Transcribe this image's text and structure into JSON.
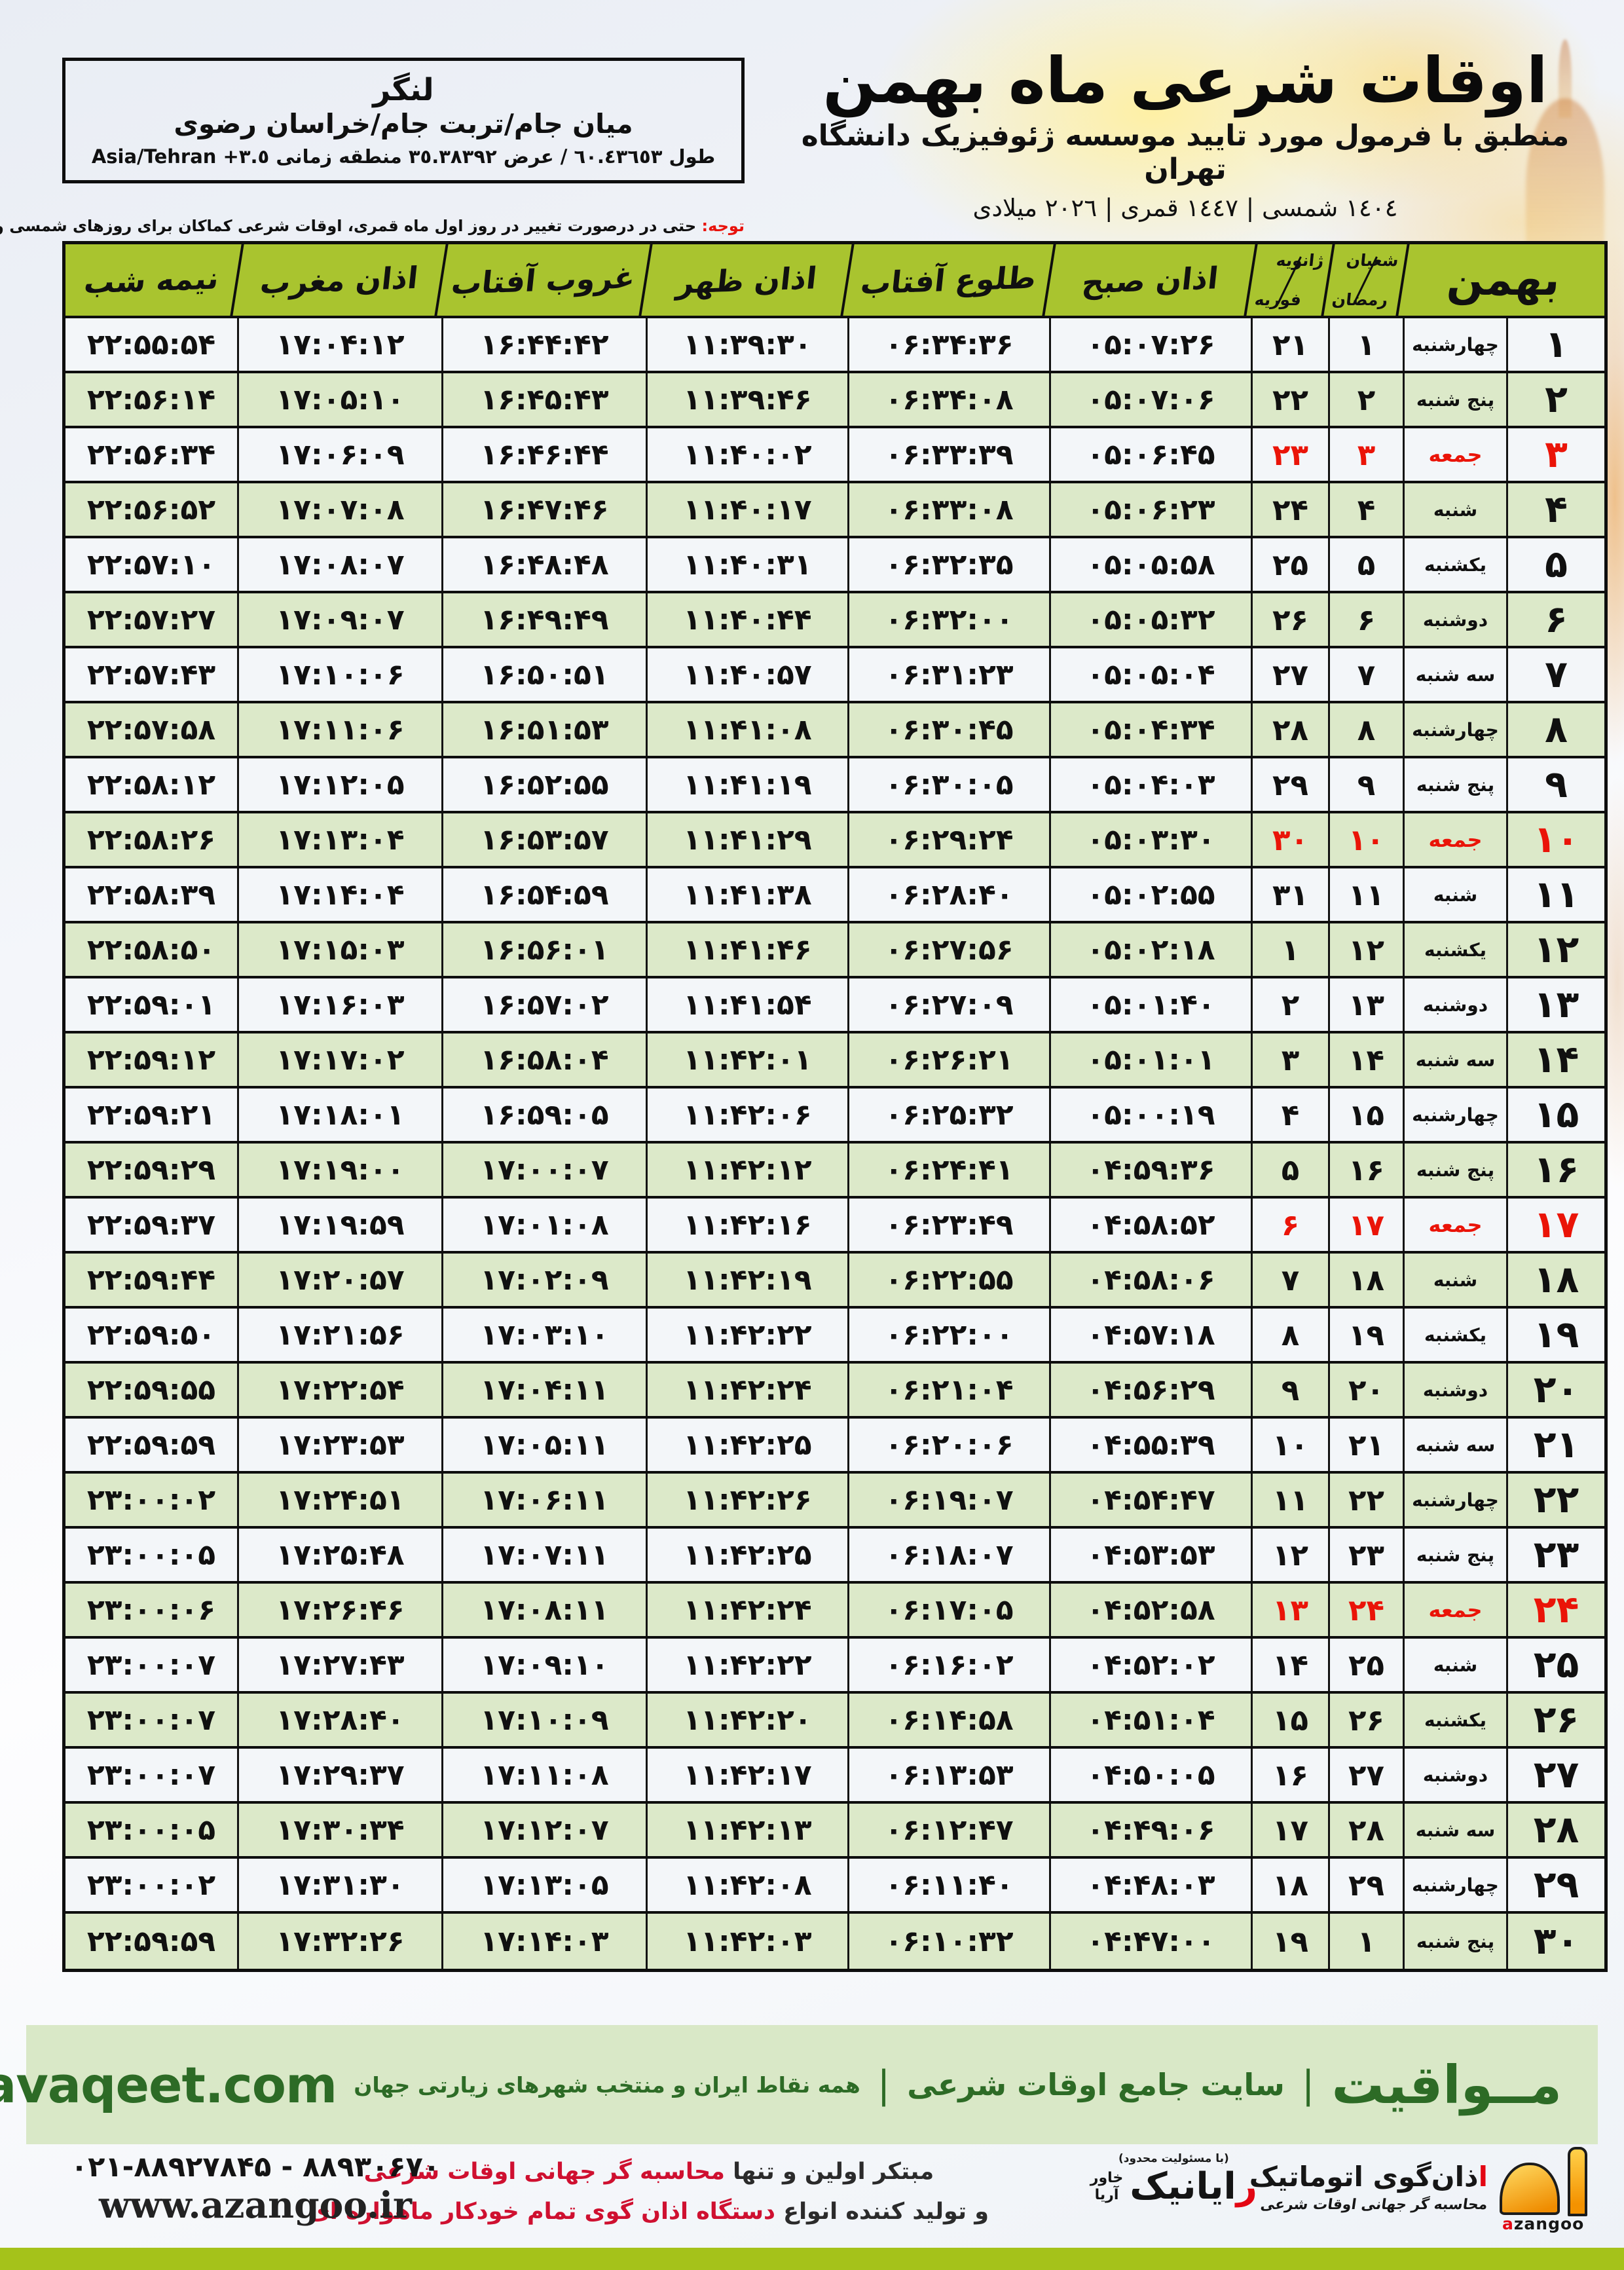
{
  "header": {
    "title": "اوقات شرعی ماه بهمن",
    "subtitle": "منطبق با فرمول مورد تایید موسسه ژئوفیزیک دانشگاه تهران",
    "date_line": "١٤٠٤ شمسی | ١٤٤٧ قمری | ٢٠٢٦ میلادی"
  },
  "location_box": {
    "city": "لنگر",
    "region": "میان جام/تربت جام/خراسان رضوی",
    "coords_fa": "طول ٦٠.٤٣٦٥٣ / عرض ٣٥.٣٨٣٩٢ منطقه زمانی",
    "coords_en": "Asia/Tehran +٣.٥"
  },
  "note": {
    "label": "توجه:",
    "text": "حتی در درصورت تغییر در روز اول ماه قمری، اوقات شرعی کماکان برای روزهای شمسی و میلادی معتبر است."
  },
  "table": {
    "month_label": "بهمن",
    "headers": {
      "hijri_top": "شعبان",
      "hijri_bottom": "رمضان",
      "greg_top": "ژانویه",
      "greg_bottom": "فوریه",
      "sobh": "اذان صبح",
      "tolu": "طلوع آفتاب",
      "zohr": "اذان ظهر",
      "ghorub": "غروب آفتاب",
      "maghreb": "اذان مغرب",
      "nime": "نیمه شب"
    },
    "rows": [
      {
        "day": "۱",
        "weekday": "چهارشنبه",
        "hijri": "۱",
        "greg": "۲۱",
        "sobh": "۰۵:۰۷:۲۶",
        "tolu": "۰۶:۳۴:۳۶",
        "zohr": "۱۱:۳۹:۳۰",
        "ghorub": "۱۶:۴۴:۴۲",
        "maghreb": "۱۷:۰۴:۱۲",
        "nime": "۲۲:۵۵:۵۴",
        "friday": false
      },
      {
        "day": "۲",
        "weekday": "پنج شنبه",
        "hijri": "۲",
        "greg": "۲۲",
        "sobh": "۰۵:۰۷:۰۶",
        "tolu": "۰۶:۳۴:۰۸",
        "zohr": "۱۱:۳۹:۴۶",
        "ghorub": "۱۶:۴۵:۴۳",
        "maghreb": "۱۷:۰۵:۱۰",
        "nime": "۲۲:۵۶:۱۴",
        "friday": false
      },
      {
        "day": "۳",
        "weekday": "جمعه",
        "hijri": "۳",
        "greg": "۲۳",
        "sobh": "۰۵:۰۶:۴۵",
        "tolu": "۰۶:۳۳:۳۹",
        "zohr": "۱۱:۴۰:۰۲",
        "ghorub": "۱۶:۴۶:۴۴",
        "maghreb": "۱۷:۰۶:۰۹",
        "nime": "۲۲:۵۶:۳۴",
        "friday": true
      },
      {
        "day": "۴",
        "weekday": "شنبه",
        "hijri": "۴",
        "greg": "۲۴",
        "sobh": "۰۵:۰۶:۲۳",
        "tolu": "۰۶:۳۳:۰۸",
        "zohr": "۱۱:۴۰:۱۷",
        "ghorub": "۱۶:۴۷:۴۶",
        "maghreb": "۱۷:۰۷:۰۸",
        "nime": "۲۲:۵۶:۵۲",
        "friday": false
      },
      {
        "day": "۵",
        "weekday": "یکشنبه",
        "hijri": "۵",
        "greg": "۲۵",
        "sobh": "۰۵:۰۵:۵۸",
        "tolu": "۰۶:۳۲:۳۵",
        "zohr": "۱۱:۴۰:۳۱",
        "ghorub": "۱۶:۴۸:۴۸",
        "maghreb": "۱۷:۰۸:۰۷",
        "nime": "۲۲:۵۷:۱۰",
        "friday": false
      },
      {
        "day": "۶",
        "weekday": "دوشنبه",
        "hijri": "۶",
        "greg": "۲۶",
        "sobh": "۰۵:۰۵:۳۲",
        "tolu": "۰۶:۳۲:۰۰",
        "zohr": "۱۱:۴۰:۴۴",
        "ghorub": "۱۶:۴۹:۴۹",
        "maghreb": "۱۷:۰۹:۰۷",
        "nime": "۲۲:۵۷:۲۷",
        "friday": false
      },
      {
        "day": "۷",
        "weekday": "سه شنبه",
        "hijri": "۷",
        "greg": "۲۷",
        "sobh": "۰۵:۰۵:۰۴",
        "tolu": "۰۶:۳۱:۲۳",
        "zohr": "۱۱:۴۰:۵۷",
        "ghorub": "۱۶:۵۰:۵۱",
        "maghreb": "۱۷:۱۰:۰۶",
        "nime": "۲۲:۵۷:۴۳",
        "friday": false
      },
      {
        "day": "۸",
        "weekday": "چهارشنبه",
        "hijri": "۸",
        "greg": "۲۸",
        "sobh": "۰۵:۰۴:۳۴",
        "tolu": "۰۶:۳۰:۴۵",
        "zohr": "۱۱:۴۱:۰۸",
        "ghorub": "۱۶:۵۱:۵۳",
        "maghreb": "۱۷:۱۱:۰۶",
        "nime": "۲۲:۵۷:۵۸",
        "friday": false
      },
      {
        "day": "۹",
        "weekday": "پنج شنبه",
        "hijri": "۹",
        "greg": "۲۹",
        "sobh": "۰۵:۰۴:۰۳",
        "tolu": "۰۶:۳۰:۰۵",
        "zohr": "۱۱:۴۱:۱۹",
        "ghorub": "۱۶:۵۲:۵۵",
        "maghreb": "۱۷:۱۲:۰۵",
        "nime": "۲۲:۵۸:۱۲",
        "friday": false
      },
      {
        "day": "۱۰",
        "weekday": "جمعه",
        "hijri": "۱۰",
        "greg": "۳۰",
        "sobh": "۰۵:۰۳:۳۰",
        "tolu": "۰۶:۲۹:۲۴",
        "zohr": "۱۱:۴۱:۲۹",
        "ghorub": "۱۶:۵۳:۵۷",
        "maghreb": "۱۷:۱۳:۰۴",
        "nime": "۲۲:۵۸:۲۶",
        "friday": true
      },
      {
        "day": "۱۱",
        "weekday": "شنبه",
        "hijri": "۱۱",
        "greg": "۳۱",
        "sobh": "۰۵:۰۲:۵۵",
        "tolu": "۰۶:۲۸:۴۰",
        "zohr": "۱۱:۴۱:۳۸",
        "ghorub": "۱۶:۵۴:۵۹",
        "maghreb": "۱۷:۱۴:۰۴",
        "nime": "۲۲:۵۸:۳۹",
        "friday": false
      },
      {
        "day": "۱۲",
        "weekday": "یکشنبه",
        "hijri": "۱۲",
        "greg": "۱",
        "sobh": "۰۵:۰۲:۱۸",
        "tolu": "۰۶:۲۷:۵۶",
        "zohr": "۱۱:۴۱:۴۶",
        "ghorub": "۱۶:۵۶:۰۱",
        "maghreb": "۱۷:۱۵:۰۳",
        "nime": "۲۲:۵۸:۵۰",
        "friday": false
      },
      {
        "day": "۱۳",
        "weekday": "دوشنبه",
        "hijri": "۱۳",
        "greg": "۲",
        "sobh": "۰۵:۰۱:۴۰",
        "tolu": "۰۶:۲۷:۰۹",
        "zohr": "۱۱:۴۱:۵۴",
        "ghorub": "۱۶:۵۷:۰۲",
        "maghreb": "۱۷:۱۶:۰۳",
        "nime": "۲۲:۵۹:۰۱",
        "friday": false
      },
      {
        "day": "۱۴",
        "weekday": "سه شنبه",
        "hijri": "۱۴",
        "greg": "۳",
        "sobh": "۰۵:۰۱:۰۱",
        "tolu": "۰۶:۲۶:۲۱",
        "zohr": "۱۱:۴۲:۰۱",
        "ghorub": "۱۶:۵۸:۰۴",
        "maghreb": "۱۷:۱۷:۰۲",
        "nime": "۲۲:۵۹:۱۲",
        "friday": false
      },
      {
        "day": "۱۵",
        "weekday": "چهارشنبه",
        "hijri": "۱۵",
        "greg": "۴",
        "sobh": "۰۵:۰۰:۱۹",
        "tolu": "۰۶:۲۵:۳۲",
        "zohr": "۱۱:۴۲:۰۶",
        "ghorub": "۱۶:۵۹:۰۵",
        "maghreb": "۱۷:۱۸:۰۱",
        "nime": "۲۲:۵۹:۲۱",
        "friday": false
      },
      {
        "day": "۱۶",
        "weekday": "پنج شنبه",
        "hijri": "۱۶",
        "greg": "۵",
        "sobh": "۰۴:۵۹:۳۶",
        "tolu": "۰۶:۲۴:۴۱",
        "zohr": "۱۱:۴۲:۱۲",
        "ghorub": "۱۷:۰۰:۰۷",
        "maghreb": "۱۷:۱۹:۰۰",
        "nime": "۲۲:۵۹:۲۹",
        "friday": false
      },
      {
        "day": "۱۷",
        "weekday": "جمعه",
        "hijri": "۱۷",
        "greg": "۶",
        "sobh": "۰۴:۵۸:۵۲",
        "tolu": "۰۶:۲۳:۴۹",
        "zohr": "۱۱:۴۲:۱۶",
        "ghorub": "۱۷:۰۱:۰۸",
        "maghreb": "۱۷:۱۹:۵۹",
        "nime": "۲۲:۵۹:۳۷",
        "friday": true
      },
      {
        "day": "۱۸",
        "weekday": "شنبه",
        "hijri": "۱۸",
        "greg": "۷",
        "sobh": "۰۴:۵۸:۰۶",
        "tolu": "۰۶:۲۲:۵۵",
        "zohr": "۱۱:۴۲:۱۹",
        "ghorub": "۱۷:۰۲:۰۹",
        "maghreb": "۱۷:۲۰:۵۷",
        "nime": "۲۲:۵۹:۴۴",
        "friday": false
      },
      {
        "day": "۱۹",
        "weekday": "یکشنبه",
        "hijri": "۱۹",
        "greg": "۸",
        "sobh": "۰۴:۵۷:۱۸",
        "tolu": "۰۶:۲۲:۰۰",
        "zohr": "۱۱:۴۲:۲۲",
        "ghorub": "۱۷:۰۳:۱۰",
        "maghreb": "۱۷:۲۱:۵۶",
        "nime": "۲۲:۵۹:۵۰",
        "friday": false
      },
      {
        "day": "۲۰",
        "weekday": "دوشنبه",
        "hijri": "۲۰",
        "greg": "۹",
        "sobh": "۰۴:۵۶:۲۹",
        "tolu": "۰۶:۲۱:۰۴",
        "zohr": "۱۱:۴۲:۲۴",
        "ghorub": "۱۷:۰۴:۱۱",
        "maghreb": "۱۷:۲۲:۵۴",
        "nime": "۲۲:۵۹:۵۵",
        "friday": false
      },
      {
        "day": "۲۱",
        "weekday": "سه شنبه",
        "hijri": "۲۱",
        "greg": "۱۰",
        "sobh": "۰۴:۵۵:۳۹",
        "tolu": "۰۶:۲۰:۰۶",
        "zohr": "۱۱:۴۲:۲۵",
        "ghorub": "۱۷:۰۵:۱۱",
        "maghreb": "۱۷:۲۳:۵۳",
        "nime": "۲۲:۵۹:۵۹",
        "friday": false
      },
      {
        "day": "۲۲",
        "weekday": "چهارشنبه",
        "hijri": "۲۲",
        "greg": "۱۱",
        "sobh": "۰۴:۵۴:۴۷",
        "tolu": "۰۶:۱۹:۰۷",
        "zohr": "۱۱:۴۲:۲۶",
        "ghorub": "۱۷:۰۶:۱۱",
        "maghreb": "۱۷:۲۴:۵۱",
        "nime": "۲۳:۰۰:۰۲",
        "friday": false
      },
      {
        "day": "۲۳",
        "weekday": "پنج شنبه",
        "hijri": "۲۳",
        "greg": "۱۲",
        "sobh": "۰۴:۵۳:۵۳",
        "tolu": "۰۶:۱۸:۰۷",
        "zohr": "۱۱:۴۲:۲۵",
        "ghorub": "۱۷:۰۷:۱۱",
        "maghreb": "۱۷:۲۵:۴۸",
        "nime": "۲۳:۰۰:۰۵",
        "friday": false
      },
      {
        "day": "۲۴",
        "weekday": "جمعه",
        "hijri": "۲۴",
        "greg": "۱۳",
        "sobh": "۰۴:۵۲:۵۸",
        "tolu": "۰۶:۱۷:۰۵",
        "zohr": "۱۱:۴۲:۲۴",
        "ghorub": "۱۷:۰۸:۱۱",
        "maghreb": "۱۷:۲۶:۴۶",
        "nime": "۲۳:۰۰:۰۶",
        "friday": true
      },
      {
        "day": "۲۵",
        "weekday": "شنبه",
        "hijri": "۲۵",
        "greg": "۱۴",
        "sobh": "۰۴:۵۲:۰۲",
        "tolu": "۰۶:۱۶:۰۲",
        "zohr": "۱۱:۴۲:۲۲",
        "ghorub": "۱۷:۰۹:۱۰",
        "maghreb": "۱۷:۲۷:۴۳",
        "nime": "۲۳:۰۰:۰۷",
        "friday": false
      },
      {
        "day": "۲۶",
        "weekday": "یکشنبه",
        "hijri": "۲۶",
        "greg": "۱۵",
        "sobh": "۰۴:۵۱:۰۴",
        "tolu": "۰۶:۱۴:۵۸",
        "zohr": "۱۱:۴۲:۲۰",
        "ghorub": "۱۷:۱۰:۰۹",
        "maghreb": "۱۷:۲۸:۴۰",
        "nime": "۲۳:۰۰:۰۷",
        "friday": false
      },
      {
        "day": "۲۷",
        "weekday": "دوشنبه",
        "hijri": "۲۷",
        "greg": "۱۶",
        "sobh": "۰۴:۵۰:۰۵",
        "tolu": "۰۶:۱۳:۵۳",
        "zohr": "۱۱:۴۲:۱۷",
        "ghorub": "۱۷:۱۱:۰۸",
        "maghreb": "۱۷:۲۹:۳۷",
        "nime": "۲۳:۰۰:۰۷",
        "friday": false
      },
      {
        "day": "۲۸",
        "weekday": "سه شنبه",
        "hijri": "۲۸",
        "greg": "۱۷",
        "sobh": "۰۴:۴۹:۰۶",
        "tolu": "۰۶:۱۲:۴۷",
        "zohr": "۱۱:۴۲:۱۳",
        "ghorub": "۱۷:۱۲:۰۷",
        "maghreb": "۱۷:۳۰:۳۴",
        "nime": "۲۳:۰۰:۰۵",
        "friday": false
      },
      {
        "day": "۲۹",
        "weekday": "چهارشنبه",
        "hijri": "۲۹",
        "greg": "۱۸",
        "sobh": "۰۴:۴۸:۰۳",
        "tolu": "۰۶:۱۱:۴۰",
        "zohr": "۱۱:۴۲:۰۸",
        "ghorub": "۱۷:۱۳:۰۵",
        "maghreb": "۱۷:۳۱:۳۰",
        "nime": "۲۳:۰۰:۰۲",
        "friday": false
      },
      {
        "day": "۳۰",
        "weekday": "پنج شنبه",
        "hijri": "۱",
        "greg": "۱۹",
        "sobh": "۰۴:۴۷:۰۰",
        "tolu": "۰۶:۱۰:۳۲",
        "zohr": "۱۱:۴۲:۰۳",
        "ghorub": "۱۷:۱۴:۰۳",
        "maghreb": "۱۷:۳۲:۲۶",
        "nime": "۲۲:۵۹:۵۹",
        "friday": false
      }
    ]
  },
  "mavaqeet": {
    "brand": "مــواقیت",
    "sep": "|",
    "tagline1": "سایت جامع اوقات شرعی",
    "tagline2": "همه نقاط ایران و منتخب شهرهای زیارتی جهان",
    "url": "mavaqeet.com"
  },
  "footer": {
    "azangoo_title": "اذان‌گوی اتوماتیک",
    "azangoo_sub": "محاسبه گر جهانی اوقات شرعی",
    "azangoo_en_red": "a",
    "azangoo_en_black": "zangoo",
    "rayanik_note": "(با مسئولیت محدود)",
    "rayanik_name": "رایانیک",
    "rayanik_side1": "خاور",
    "rayanik_side2": "آریا",
    "promo_line1_black": "مبتکر اولین و تنها ",
    "promo_line1_red": "محاسبه گر جهانی اوقات شرعی",
    "promo_line2_black": "و تولید کننده انواع ",
    "promo_line2_red": "دستگاه اذان گوی تمام خودکار ماهواره ای",
    "phone": "۰۲۱-۸۸۹۲۷۸۴۵ - ۸۸۹۳۰۶۷۰",
    "website": "www.azangoo.ir"
  },
  "colors": {
    "header_green": "#a9c42f",
    "row_green": "#dce9c9",
    "row_white": "#f3f6f9",
    "friday_red": "#ea1408",
    "note_red": "#e8130c",
    "dark_green": "#2d6b26",
    "mavaqeet_bar": "#d9e8c7",
    "lime_bar": "#a5c21a"
  }
}
